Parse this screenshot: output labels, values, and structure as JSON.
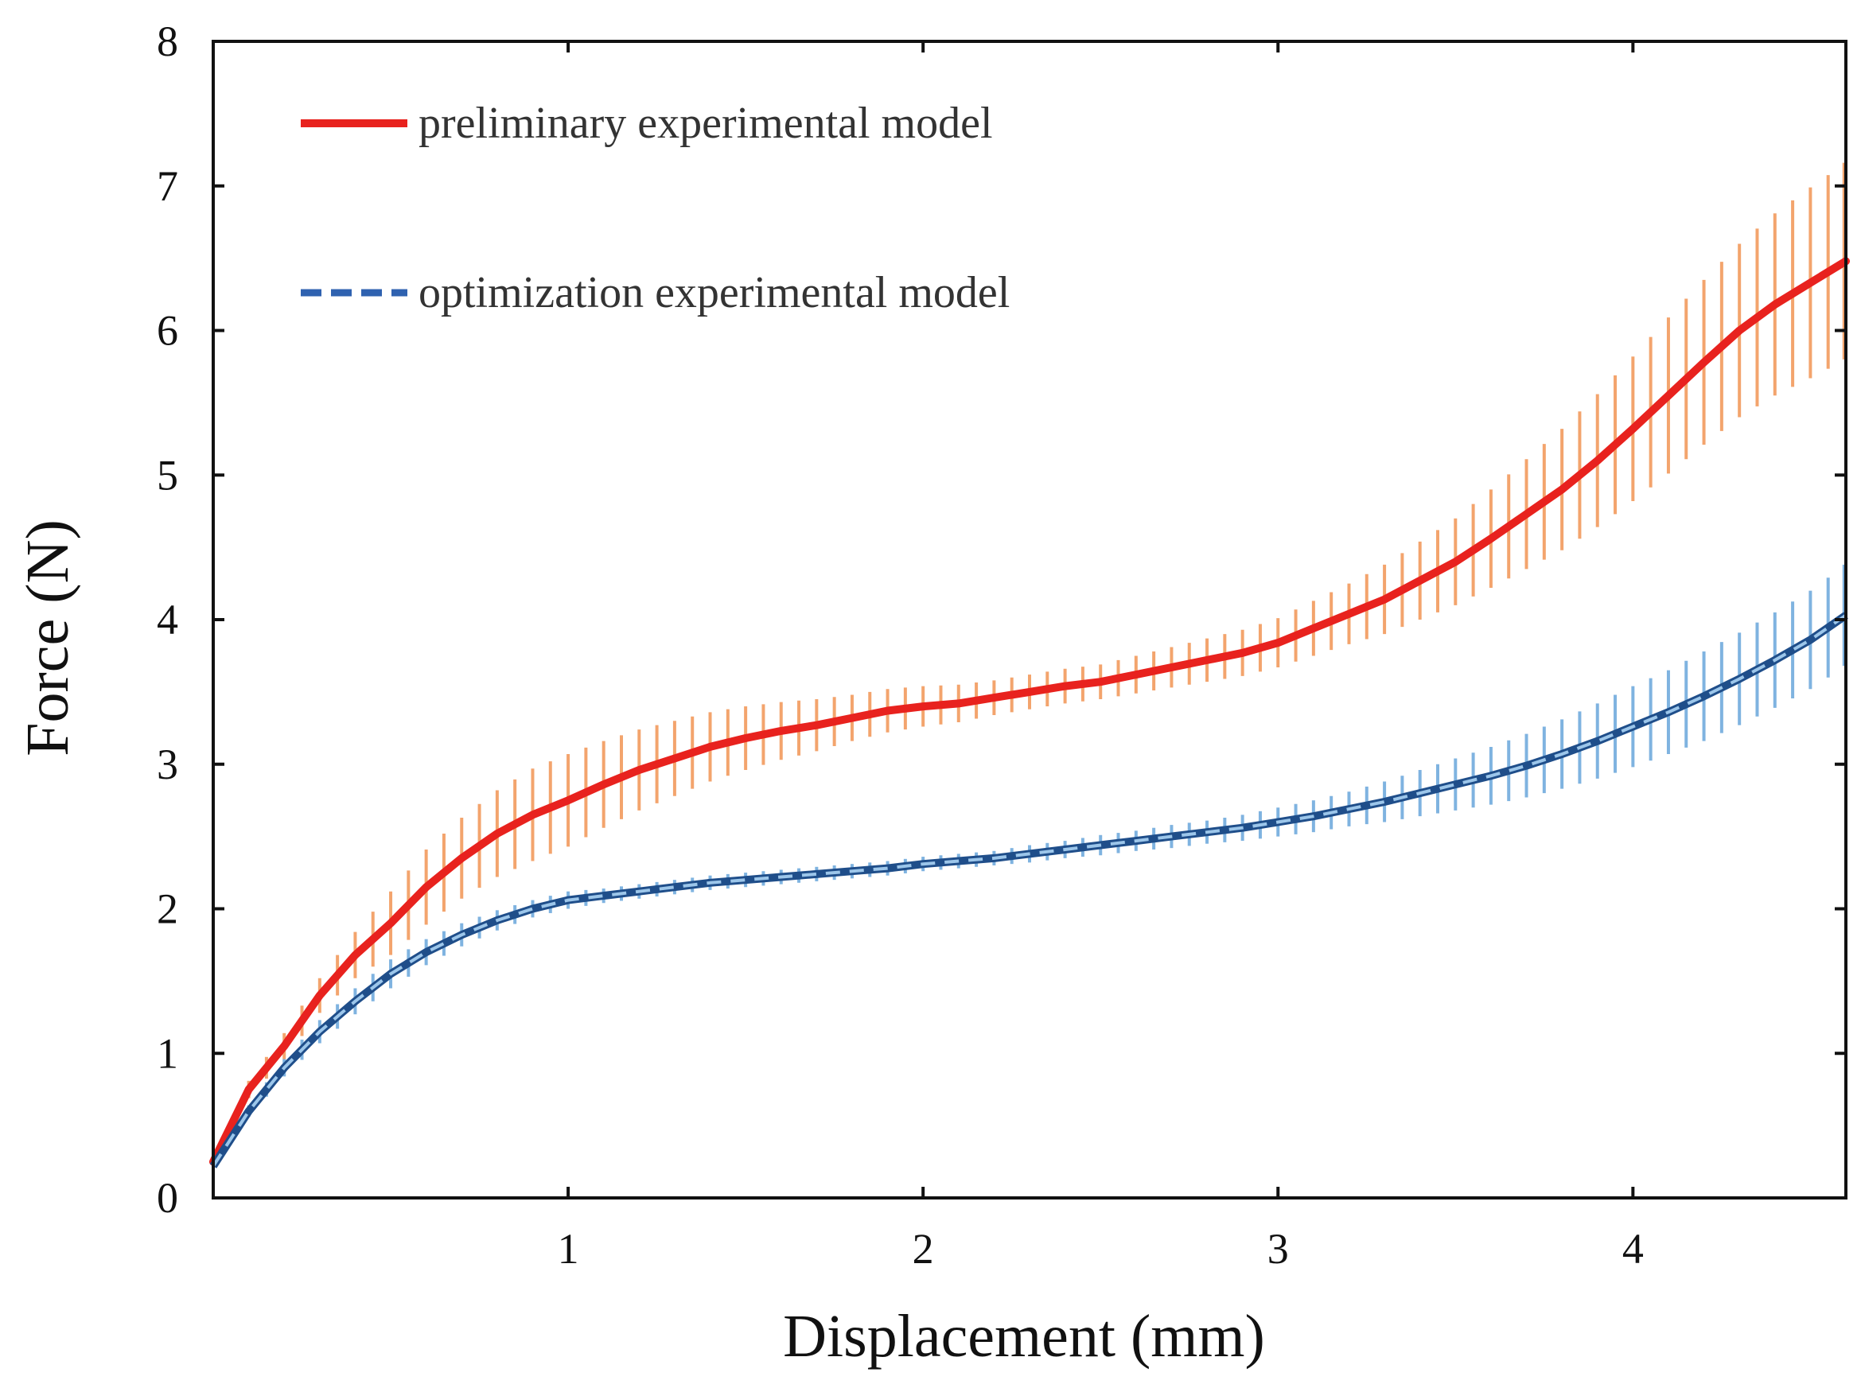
{
  "chart_data": {
    "type": "line",
    "title": "",
    "xlabel": "Displacement (mm)",
    "ylabel": "Force (N)",
    "xlim": [
      0,
      4.6
    ],
    "ylim": [
      0,
      8
    ],
    "xticks": [
      1,
      2,
      3,
      4
    ],
    "yticks": [
      0,
      1,
      2,
      3,
      4,
      5,
      6,
      7,
      8
    ],
    "grid": false,
    "legend_position": "top-left",
    "series": [
      {
        "name": "preliminary experimental model",
        "color": "#e8221e",
        "error_color": "#f3a46d",
        "line_style": "solid",
        "x": [
          0.0,
          0.1,
          0.2,
          0.3,
          0.4,
          0.5,
          0.6,
          0.7,
          0.8,
          0.9,
          1.0,
          1.1,
          1.2,
          1.3,
          1.4,
          1.5,
          1.6,
          1.7,
          1.8,
          1.9,
          2.0,
          2.1,
          2.2,
          2.3,
          2.4,
          2.5,
          2.6,
          2.7,
          2.8,
          2.9,
          3.0,
          3.1,
          3.2,
          3.3,
          3.4,
          3.5,
          3.6,
          3.7,
          3.8,
          3.9,
          4.0,
          4.1,
          4.2,
          4.3,
          4.4,
          4.5,
          4.6
        ],
        "y": [
          0.25,
          0.75,
          1.05,
          1.4,
          1.68,
          1.9,
          2.15,
          2.35,
          2.52,
          2.65,
          2.75,
          2.86,
          2.96,
          3.04,
          3.12,
          3.18,
          3.23,
          3.27,
          3.32,
          3.37,
          3.4,
          3.42,
          3.46,
          3.5,
          3.54,
          3.57,
          3.62,
          3.67,
          3.72,
          3.77,
          3.84,
          3.94,
          4.04,
          4.14,
          4.27,
          4.4,
          4.56,
          4.73,
          4.9,
          5.1,
          5.32,
          5.55,
          5.78,
          6.0,
          6.18,
          6.33,
          6.48
        ],
        "err": [
          0.02,
          0.06,
          0.09,
          0.12,
          0.16,
          0.22,
          0.26,
          0.28,
          0.3,
          0.32,
          0.32,
          0.3,
          0.28,
          0.26,
          0.24,
          0.22,
          0.2,
          0.18,
          0.16,
          0.15,
          0.14,
          0.13,
          0.12,
          0.12,
          0.12,
          0.12,
          0.13,
          0.14,
          0.15,
          0.16,
          0.17,
          0.19,
          0.21,
          0.24,
          0.27,
          0.3,
          0.34,
          0.38,
          0.42,
          0.46,
          0.5,
          0.54,
          0.57,
          0.6,
          0.63,
          0.66,
          0.68
        ]
      },
      {
        "name": "optimization experimental model",
        "color": "#2f62b0",
        "error_color": "#7fb3e0",
        "line_style": "dashed",
        "x": [
          0.0,
          0.1,
          0.2,
          0.3,
          0.4,
          0.5,
          0.6,
          0.7,
          0.8,
          0.9,
          1.0,
          1.1,
          1.2,
          1.3,
          1.4,
          1.5,
          1.6,
          1.7,
          1.8,
          1.9,
          2.0,
          2.1,
          2.2,
          2.3,
          2.4,
          2.5,
          2.6,
          2.7,
          2.8,
          2.9,
          3.0,
          3.1,
          3.2,
          3.3,
          3.4,
          3.5,
          3.6,
          3.7,
          3.8,
          3.9,
          4.0,
          4.1,
          4.2,
          4.3,
          4.4,
          4.5,
          4.6
        ],
        "y": [
          0.22,
          0.6,
          0.9,
          1.15,
          1.36,
          1.55,
          1.7,
          1.82,
          1.92,
          2.0,
          2.06,
          2.09,
          2.12,
          2.15,
          2.18,
          2.2,
          2.22,
          2.24,
          2.26,
          2.28,
          2.31,
          2.33,
          2.35,
          2.38,
          2.41,
          2.44,
          2.47,
          2.5,
          2.53,
          2.56,
          2.6,
          2.64,
          2.69,
          2.74,
          2.8,
          2.86,
          2.92,
          2.99,
          3.07,
          3.16,
          3.26,
          3.36,
          3.47,
          3.59,
          3.72,
          3.86,
          4.03
        ],
        "err": [
          0.02,
          0.04,
          0.06,
          0.08,
          0.09,
          0.1,
          0.09,
          0.08,
          0.07,
          0.06,
          0.06,
          0.05,
          0.05,
          0.05,
          0.05,
          0.05,
          0.05,
          0.05,
          0.05,
          0.05,
          0.05,
          0.05,
          0.05,
          0.06,
          0.06,
          0.07,
          0.07,
          0.08,
          0.08,
          0.09,
          0.1,
          0.11,
          0.12,
          0.14,
          0.16,
          0.18,
          0.2,
          0.22,
          0.24,
          0.26,
          0.28,
          0.29,
          0.31,
          0.32,
          0.33,
          0.34,
          0.35
        ]
      }
    ]
  }
}
